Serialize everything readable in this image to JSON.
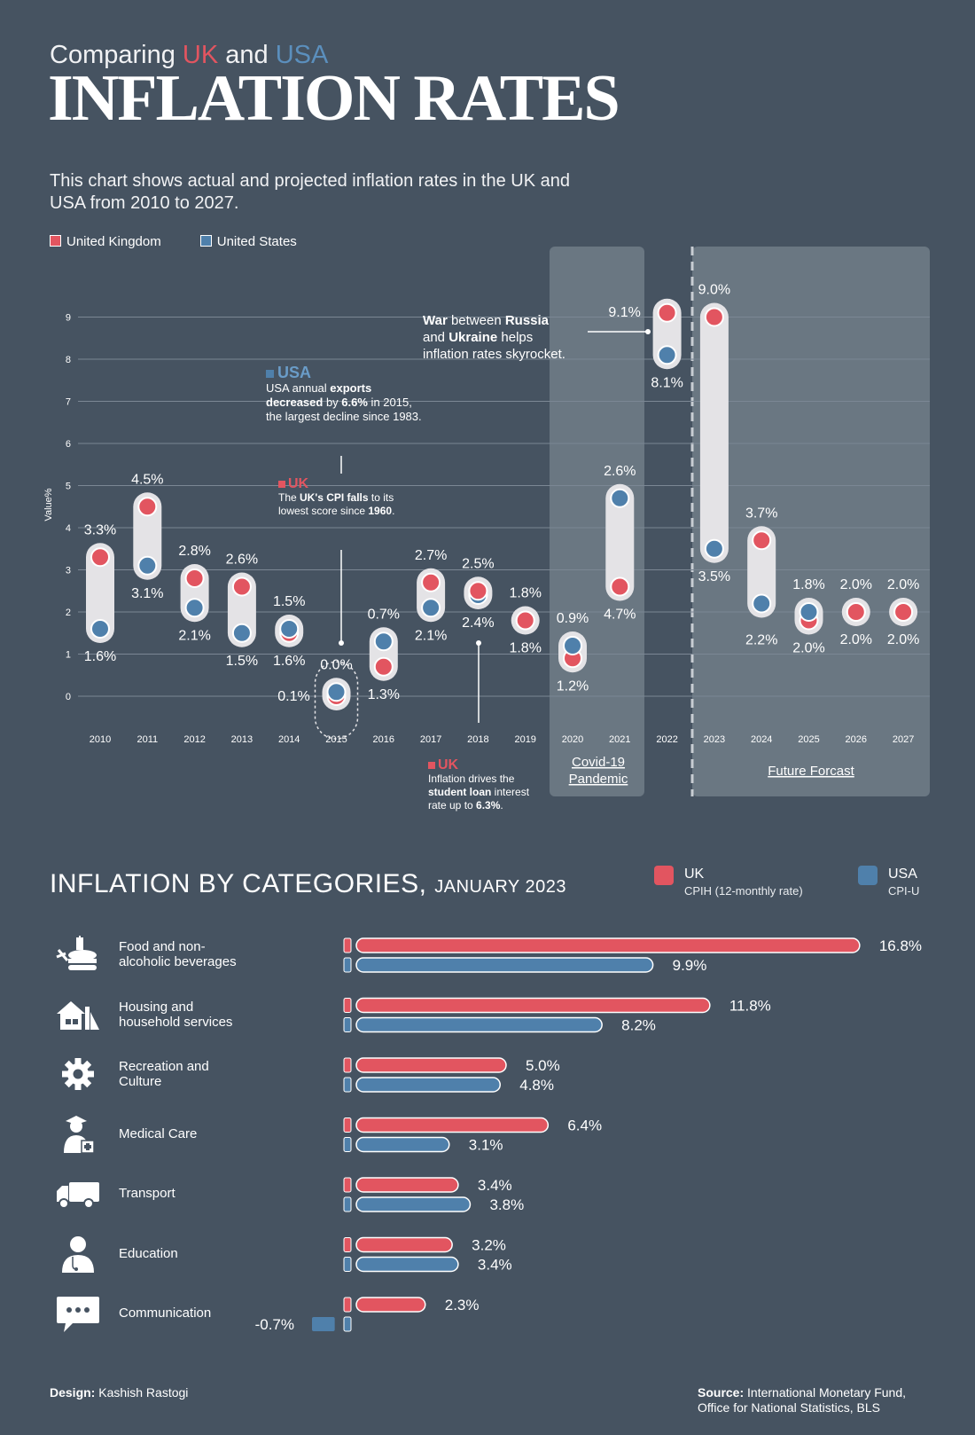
{
  "header": {
    "subtitle_pre": "Comparing ",
    "subtitle_uk": "UK",
    "subtitle_mid": " and ",
    "subtitle_us": "USA",
    "title": "INFLATION RATES",
    "description": "This chart shows actual and projected inflation rates in the UK and USA from 2010 to 2027."
  },
  "legend": {
    "uk": "United Kingdom",
    "us": "United States"
  },
  "colors": {
    "uk": "#e25560",
    "us": "#4f80ab",
    "background": "#465361",
    "panel": "#6a7782",
    "capsule": "#e4e3e6"
  },
  "chart_data": [
    {
      "type": "dumbbell",
      "ylabel": "Value%",
      "ylim": [
        0,
        9
      ],
      "yticks": [
        "0",
        "1",
        "2",
        "3",
        "4",
        "5",
        "6",
        "7",
        "8",
        "9"
      ],
      "categories": [
        "2010",
        "2011",
        "2012",
        "2013",
        "2014",
        "2015",
        "2016",
        "2017",
        "2018",
        "2019",
        "2020",
        "2021",
        "2022",
        "2023",
        "2024",
        "2025",
        "2026",
        "2027"
      ],
      "series": [
        {
          "name": "United Kingdom",
          "values": [
            3.3,
            4.5,
            2.8,
            2.6,
            1.5,
            0.0,
            0.7,
            2.7,
            2.5,
            1.8,
            0.9,
            2.6,
            9.1,
            9.0,
            3.7,
            1.8,
            2.0,
            2.0
          ]
        },
        {
          "name": "United States",
          "values": [
            1.6,
            3.1,
            2.1,
            1.5,
            1.6,
            0.1,
            1.3,
            2.1,
            2.4,
            1.8,
            1.2,
            4.7,
            8.1,
            3.5,
            2.2,
            2.0,
            2.0,
            2.0
          ]
        }
      ],
      "value_labels": [
        {
          "text": "3.3%"
        },
        {
          "text": "1.6%"
        },
        {
          "text": "4.5%"
        },
        {
          "text": "3.1%"
        },
        {
          "text": "2.8%"
        },
        {
          "text": "2.1%"
        },
        {
          "text": "2.6%"
        },
        {
          "text": "1.5%"
        },
        {
          "text": "1.6%"
        },
        {
          "text": "1.5%"
        },
        {
          "text": "0.1%"
        },
        {
          "text": "0.0%"
        },
        {
          "text": "1.3%"
        },
        {
          "text": "0.7%"
        },
        {
          "text": "2.7%"
        },
        {
          "text": "2.1%"
        },
        {
          "text": "2.5%"
        },
        {
          "text": "2.4%"
        },
        {
          "text": "1.8%"
        },
        {
          "text": "1.8%"
        },
        {
          "text": "1.2%"
        },
        {
          "text": "0.9%"
        },
        {
          "text": "4.7%"
        },
        {
          "text": "2.6%"
        },
        {
          "text": "9.1%"
        },
        {
          "text": "8.1%"
        },
        {
          "text": "9.0%"
        },
        {
          "text": "3.5%"
        },
        {
          "text": "3.7%"
        },
        {
          "text": "2.2%"
        },
        {
          "text": "2.0%"
        },
        {
          "text": "1.8%"
        },
        {
          "text": "2.0%"
        },
        {
          "text": "2.0%"
        },
        {
          "text": "2.0%"
        },
        {
          "text": "2.0%"
        }
      ],
      "panels": [
        "Covid-19 Pandemic",
        "Future Forcast"
      ]
    },
    {
      "type": "bar",
      "title": "INFLATION BY CATEGORIES, JANUARY 2023",
      "categories": [
        "Food and non-alcoholic beverages",
        "Housing and household services",
        "Recreation and Culture",
        "Medical Care",
        "Transport",
        "Education",
        "Communication"
      ],
      "series": [
        {
          "name": "UK CPIH (12-monthly rate)",
          "values": [
            16.8,
            11.8,
            5.0,
            6.4,
            3.4,
            3.2,
            2.3
          ]
        },
        {
          "name": "USA CPI-U",
          "values": [
            9.9,
            8.2,
            4.8,
            3.1,
            3.8,
            3.4,
            -0.7
          ]
        }
      ]
    }
  ],
  "annotations": {
    "usa": {
      "head": "USA",
      "l1a": "USA annual ",
      "l1b": "exports",
      "l2a": "decreased",
      "l2b": " by ",
      "l2c": "6.6%",
      "l2d": " in 2015,",
      "l3": "the largest decline since 1983."
    },
    "uk2015": {
      "head": "UK",
      "l1a": "The ",
      "l1b": "UK's CPI falls",
      "l1c": " to its",
      "l2a": "lowest score since ",
      "l2b": "1960",
      "l2c": "."
    },
    "war": {
      "l1a": "War",
      "l1b": " between ",
      "l1c": "Russia",
      "l2a": "and ",
      "l2b": "Ukraine",
      "l2c": " helps",
      "l3": "inflation rates skyrocket."
    },
    "uk2018": {
      "head": "UK",
      "l1": "Inflation drives the",
      "l2a": "student loan",
      "l2b": " interest",
      "l3a": "rate up to ",
      "l3b": "6.3%",
      "l3c": "."
    }
  },
  "categories_section": {
    "title": "INFLATION BY CATEGORIES,",
    "subtitle": "JANUARY 2023",
    "legend_uk": "UK",
    "legend_uk_sub": "CPIH (12-monthly rate)",
    "legend_us": "USA",
    "legend_us_sub": "CPI-U",
    "items": [
      {
        "label1": "Food and non-",
        "label2": "alcoholic beverages",
        "uk_label": "16.8%",
        "us_label": "9.9%",
        "icon": "food-icon"
      },
      {
        "label1": "Housing and",
        "label2": "household services",
        "uk_label": "11.8%",
        "us_label": "8.2%",
        "icon": "house-icon"
      },
      {
        "label1": "Recreation and",
        "label2": "Culture",
        "uk_label": "5.0%",
        "us_label": "4.8%",
        "icon": "gear-icon"
      },
      {
        "label1": "Medical Care",
        "label2": "",
        "uk_label": "6.4%",
        "us_label": "3.1%",
        "icon": "medical-icon"
      },
      {
        "label1": "Transport",
        "label2": "",
        "uk_label": "3.4%",
        "us_label": "3.8%",
        "icon": "truck-icon"
      },
      {
        "label1": "Education",
        "label2": "",
        "uk_label": "3.2%",
        "us_label": "3.4%",
        "icon": "education-icon"
      },
      {
        "label1": "Communication",
        "label2": "",
        "uk_label": "2.3%",
        "us_label": "-0.7%",
        "icon": "chat-icon"
      }
    ]
  },
  "footer": {
    "design_label": "Design:",
    "design_name": " Kashish Rastogi",
    "source_label": "Source:",
    "source_l1": " International Monetary Fund,",
    "source_l2": "Office for National Statistics, BLS"
  }
}
